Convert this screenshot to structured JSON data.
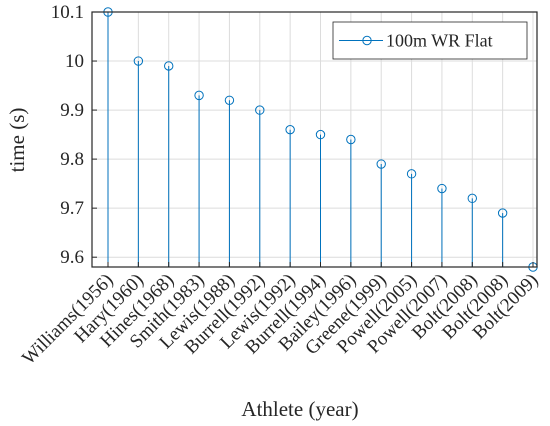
{
  "chart_data": {
    "type": "stem",
    "title": "",
    "xlabel": "Athlete (year)",
    "ylabel": "time (s)",
    "ylim": [
      9.58,
      10.1
    ],
    "yticks": [
      9.6,
      9.7,
      9.8,
      9.9,
      10,
      10.1
    ],
    "ytick_labels": [
      "9.6",
      "9.7",
      "9.8",
      "9.9",
      "10",
      "10.1"
    ],
    "grid": true,
    "legend_position": "top-right",
    "color": "#0072BD",
    "categories": [
      "Williams(1956)",
      "Hary(1960)",
      "Hines(1968)",
      "Smith(1983)",
      "Lewis(1988)",
      "Burrell(1992)",
      "Lewis(1992)",
      "Burrell(1994)",
      "Bailey(1996)",
      "Greene(1999)",
      "Powell(2005)",
      "Powell(2007)",
      "Bolt(2008)",
      "Bolt(2008)",
      "Bolt(2009)"
    ],
    "series": [
      {
        "name": "100m WR Flat",
        "values": [
          10.1,
          10.0,
          9.99,
          9.93,
          9.92,
          9.9,
          9.86,
          9.85,
          9.84,
          9.79,
          9.77,
          9.74,
          9.72,
          9.69,
          9.58
        ]
      }
    ]
  }
}
